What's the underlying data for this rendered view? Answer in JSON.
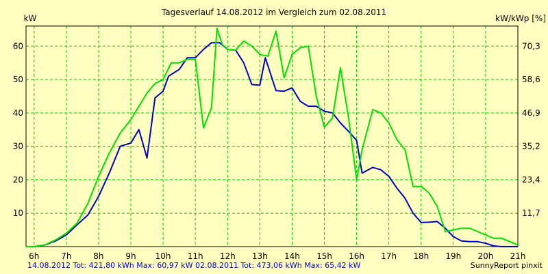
{
  "chart_data": {
    "type": "line",
    "title": "Tagesverlauf 14.08.2012 im Vergleich zum 02.08.2011",
    "ylabel_left": "kW",
    "ylabel_right": "kW/kWp [%]",
    "x_ticks": [
      "6h",
      "7h",
      "8h",
      "9h",
      "10h",
      "11h",
      "12h",
      "13h",
      "14h",
      "15h",
      "16h",
      "17h",
      "18h",
      "19h",
      "20h",
      "21h"
    ],
    "y_left_ticks": [
      "10",
      "20",
      "30",
      "40",
      "50",
      "60"
    ],
    "y_right_ticks": [
      "11,7",
      "23,4",
      "35,2",
      "46,9",
      "58,6",
      "70,3"
    ],
    "xlim": [
      5.75,
      21.0
    ],
    "ylim": [
      0,
      66
    ],
    "grid": true,
    "colors": {
      "background": "#ffffc0",
      "grid": "#00cc00",
      "series_2012": "#0000cc",
      "series_2011": "#00e000"
    },
    "series": [
      {
        "name": "14.08.2012",
        "color": "#0000cc",
        "x": [
          5.75,
          6.0,
          6.33,
          6.67,
          7.0,
          7.33,
          7.67,
          8.0,
          8.33,
          8.67,
          9.0,
          9.25,
          9.5,
          9.75,
          10.0,
          10.17,
          10.5,
          10.75,
          11.0,
          11.25,
          11.5,
          11.75,
          12.0,
          12.25,
          12.5,
          12.75,
          13.0,
          13.17,
          13.5,
          13.75,
          14.0,
          14.25,
          14.5,
          14.75,
          15.0,
          15.25,
          15.5,
          15.75,
          16.0,
          16.17,
          16.5,
          16.75,
          17.0,
          17.25,
          17.5,
          17.75,
          18.0,
          18.25,
          18.5,
          18.75,
          19.0,
          19.25,
          19.5,
          19.75,
          20.0,
          20.25,
          20.5,
          20.75,
          21.0
        ],
        "y": [
          0,
          0,
          0.5,
          1.7,
          3.5,
          6.5,
          9.5,
          15,
          22,
          30,
          31,
          35,
          26.5,
          44.5,
          46.5,
          51,
          53,
          56.5,
          56.5,
          59,
          61,
          61,
          59,
          58.8,
          55,
          48.5,
          48.3,
          56.5,
          46.7,
          46.5,
          47.5,
          43.5,
          42,
          42,
          40.5,
          40,
          37,
          34.5,
          31.8,
          22,
          23.7,
          23,
          21,
          17.5,
          14.5,
          10,
          7.2,
          7.3,
          7.5,
          5.5,
          3,
          1.7,
          1.5,
          1.5,
          1,
          0.2,
          0,
          0,
          0
        ]
      },
      {
        "name": "02.08.2011",
        "color": "#00e000",
        "x": [
          5.75,
          6.0,
          6.33,
          6.67,
          7.0,
          7.33,
          7.67,
          8.0,
          8.33,
          8.67,
          9.0,
          9.25,
          9.5,
          9.75,
          10.0,
          10.25,
          10.5,
          10.75,
          11.0,
          11.25,
          11.5,
          11.67,
          11.83,
          12.0,
          12.25,
          12.5,
          12.75,
          13.0,
          13.25,
          13.5,
          13.75,
          14.0,
          14.25,
          14.5,
          14.75,
          15.0,
          15.25,
          15.5,
          15.75,
          16.0,
          16.17,
          16.5,
          16.75,
          17.0,
          17.25,
          17.5,
          17.75,
          18.0,
          18.25,
          18.5,
          18.75,
          19.0,
          19.25,
          19.5,
          19.75,
          20.0,
          20.25,
          20.5,
          20.75,
          21.0
        ],
        "y": [
          0,
          0,
          0.5,
          2,
          4,
          7,
          13,
          21,
          28,
          34,
          38,
          42,
          46,
          48.8,
          50,
          55,
          55,
          56,
          56,
          35.5,
          41.5,
          65.3,
          60.5,
          59,
          58.8,
          61.5,
          60,
          57.5,
          57,
          64.5,
          50.5,
          57.5,
          59.5,
          60,
          45,
          35.7,
          38.5,
          53.5,
          38.5,
          20,
          29,
          41,
          40,
          37,
          32,
          29,
          18,
          18,
          16,
          12,
          4.5,
          5,
          5.5,
          5.5,
          4.5,
          3.5,
          2.5,
          2.5,
          1.5,
          0.5
        ]
      }
    ],
    "footer_left_2012": "14.08.2012 Tot: 421,80 kWh Max: 60,97 kW",
    "footer_left_2011": "02.08.2011 Tot: 473,06 kWh Max: 65,42 kW",
    "footer_right": "SunnyReport pinxit"
  }
}
